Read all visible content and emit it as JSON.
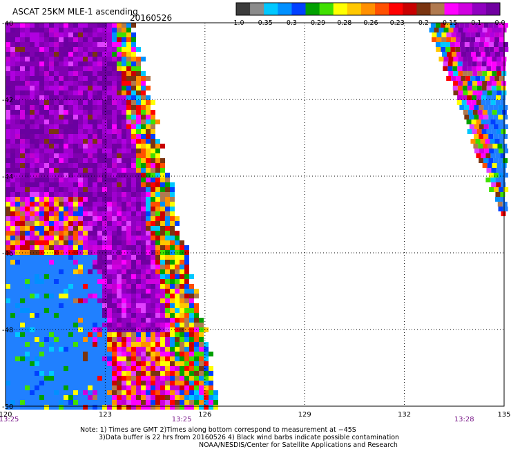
{
  "header": {
    "title": "ASCAT 25KM MLE-1 ascending",
    "date": "20160526"
  },
  "colorbar": {
    "colors": [
      "#3c3c3c",
      "#8c8c8c",
      "#00c8ff",
      "#0090ff",
      "#0040ff",
      "#00a000",
      "#40e000",
      "#ffff00",
      "#ffc800",
      "#ff9000",
      "#ff5000",
      "#ff0000",
      "#c80000",
      "#7a3410",
      "#b07a50",
      "#ff00ff",
      "#d000e0",
      "#9000c0",
      "#7000a0"
    ],
    "labels": [
      "−1.0",
      "−0.35",
      "−0.3",
      "−0.29",
      "−0.28",
      "−0.26",
      "−0.23",
      "−0.2",
      "−0.15",
      "−0.1",
      "0.0"
    ]
  },
  "map": {
    "lon_range": [
      120,
      135
    ],
    "lat_range": [
      -50,
      -40
    ],
    "lon_ticks": [
      "120",
      "123",
      "126",
      "129",
      "132",
      "135"
    ],
    "lat_ticks": [
      "-40",
      "-42",
      "-44",
      "-46",
      "-48",
      "-50"
    ],
    "times": [
      {
        "label": "13:25",
        "lon": 120
      },
      {
        "label": "13:25",
        "lon": 125.3
      },
      {
        "label": "13:28",
        "lon": 133.8
      }
    ]
  },
  "footer": {
    "line1": "Note: 1) Times are GMT 2)Times along bottom correspond to measurement at −45S",
    "line2": "3)Data buffer is 22 hrs from 20160526 4) Black wind barbs indicate possible contamination",
    "line3": "NOAA/NESDIS/Center for Satellite Applications and Research"
  }
}
